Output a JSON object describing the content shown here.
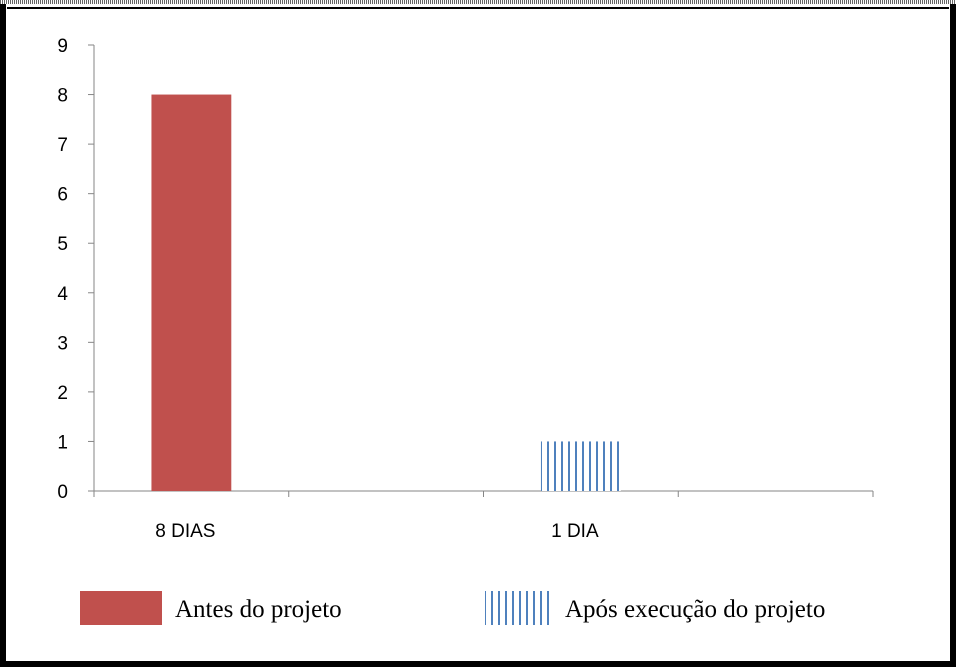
{
  "chart_data": {
    "type": "bar",
    "categories": [
      "8 DIAS",
      null,
      "1 DIA",
      null
    ],
    "series": [
      {
        "name": "Antes do projeto",
        "color": "#c0504d",
        "pattern": "solid",
        "values": [
          8,
          null,
          null,
          null
        ]
      },
      {
        "name": "Após execução do projeto",
        "color": "#4f81bd",
        "pattern": "vertical-lines",
        "values": [
          null,
          null,
          1,
          null
        ]
      }
    ],
    "ylim": [
      0,
      9
    ],
    "yticks": [
      0,
      1,
      2,
      3,
      4,
      5,
      6,
      7,
      8,
      9
    ],
    "legend": "bottom"
  }
}
